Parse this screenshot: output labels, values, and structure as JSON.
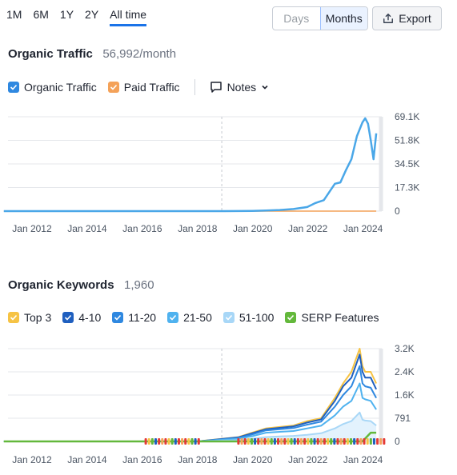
{
  "period_tabs": [
    "1M",
    "6M",
    "1Y",
    "2Y",
    "All time"
  ],
  "active_period": "All time",
  "granularity": {
    "days": "Days",
    "months": "Months",
    "active": "Months"
  },
  "export_label": "Export",
  "traffic": {
    "title": "Organic Traffic",
    "value": "56,992/month",
    "legend": {
      "organic": "Organic Traffic",
      "paid": "Paid Traffic"
    },
    "notes_label": "Notes"
  },
  "keywords": {
    "title": "Organic Keywords",
    "value": "1,960",
    "legend": [
      "Top 3",
      "4-10",
      "11-20",
      "21-50",
      "51-100",
      "SERP Features"
    ]
  },
  "colors": {
    "accent": "#1a73e8",
    "organic": "#4aa7e8",
    "paid": "#f4a259",
    "top3": "#f6c344",
    "pos4_10": "#1f5fbf",
    "pos11_20": "#2f88e0",
    "pos21_50": "#4fb2ef",
    "pos51_100": "#a8d7f7",
    "serp": "#63b83b",
    "grid": "#e5e7eb"
  },
  "chart_data": [
    {
      "type": "line",
      "title": "Organic Traffic",
      "x": [
        2011,
        2012,
        2013,
        2014,
        2015,
        2016,
        2017,
        2018,
        2019,
        2020,
        2020.5,
        2021,
        2021.5,
        2022,
        2022.3,
        2022.6,
        2023,
        2023.2,
        2023.4,
        2023.6,
        2023.8,
        2024,
        2024.1,
        2024.2,
        2024.3,
        2024.4,
        2024.5
      ],
      "series": [
        {
          "name": "Organic Traffic",
          "values": [
            0,
            0,
            0,
            0,
            0,
            0,
            0,
            0,
            0,
            200,
            400,
            800,
            1500,
            3000,
            6000,
            8000,
            20000,
            21000,
            30000,
            38000,
            55000,
            65000,
            68000,
            64000,
            52000,
            38000,
            56992
          ]
        },
        {
          "name": "Paid Traffic",
          "values": [
            0,
            0,
            0,
            0,
            0,
            0,
            0,
            0,
            0,
            0,
            0,
            0,
            0,
            0,
            0,
            0,
            0,
            0,
            0,
            0,
            0,
            0,
            0,
            0,
            0,
            0,
            0
          ]
        }
      ],
      "x_tick_labels": [
        "Jan 2012",
        "Jan 2014",
        "Jan 2016",
        "Jan 2018",
        "Jan 2020",
        "Jan 2022",
        "Jan 2024"
      ],
      "y_tick_labels": [
        "69.1K",
        "51.8K",
        "34.5K",
        "17.3K",
        "0"
      ],
      "ylim": [
        0,
        69100
      ]
    },
    {
      "type": "area",
      "title": "Organic Keywords",
      "x": [
        2011,
        2012,
        2014,
        2016,
        2018,
        2019.5,
        2020,
        2020.5,
        2021,
        2021.5,
        2022,
        2022.5,
        2023,
        2023.3,
        2023.6,
        2023.9,
        2024,
        2024.1,
        2024.3,
        2024.5
      ],
      "series": [
        {
          "name": "Top 3",
          "values": [
            0,
            0,
            0,
            0,
            0,
            150,
            300,
            450,
            500,
            550,
            700,
            800,
            1500,
            2000,
            2400,
            3200,
            2600,
            2400,
            2400,
            2000
          ]
        },
        {
          "name": "4-10",
          "values": [
            0,
            0,
            0,
            0,
            0,
            140,
            280,
            420,
            470,
            520,
            650,
            760,
            1400,
            1900,
            2200,
            3000,
            2400,
            2200,
            2200,
            1800
          ]
        },
        {
          "name": "11-20",
          "values": [
            0,
            0,
            0,
            0,
            0,
            120,
            240,
            380,
            420,
            460,
            580,
            680,
            1200,
            1600,
            1900,
            2600,
            2000,
            1900,
            1850,
            1500
          ]
        },
        {
          "name": "21-50",
          "values": [
            0,
            0,
            0,
            0,
            0,
            90,
            180,
            300,
            330,
            360,
            450,
            540,
            900,
            1200,
            1400,
            2000,
            1500,
            1450,
            1400,
            1100
          ]
        },
        {
          "name": "51-100",
          "values": [
            0,
            0,
            0,
            0,
            0,
            40,
            90,
            150,
            170,
            190,
            230,
            280,
            450,
            600,
            700,
            1000,
            750,
            720,
            700,
            550
          ]
        },
        {
          "name": "SERP Features",
          "values": [
            0,
            0,
            0,
            0,
            0,
            0,
            0,
            0,
            0,
            0,
            0,
            0,
            0,
            0,
            0,
            0,
            0,
            100,
            300,
            300
          ]
        }
      ],
      "x_tick_labels": [
        "Jan 2012",
        "Jan 2014",
        "Jan 2016",
        "Jan 2018",
        "Jan 2020",
        "Jan 2022",
        "Jan 2024"
      ],
      "y_tick_labels": [
        "3.2K",
        "2.4K",
        "1.6K",
        "791",
        "0"
      ],
      "ylim": [
        0,
        3200
      ]
    }
  ]
}
